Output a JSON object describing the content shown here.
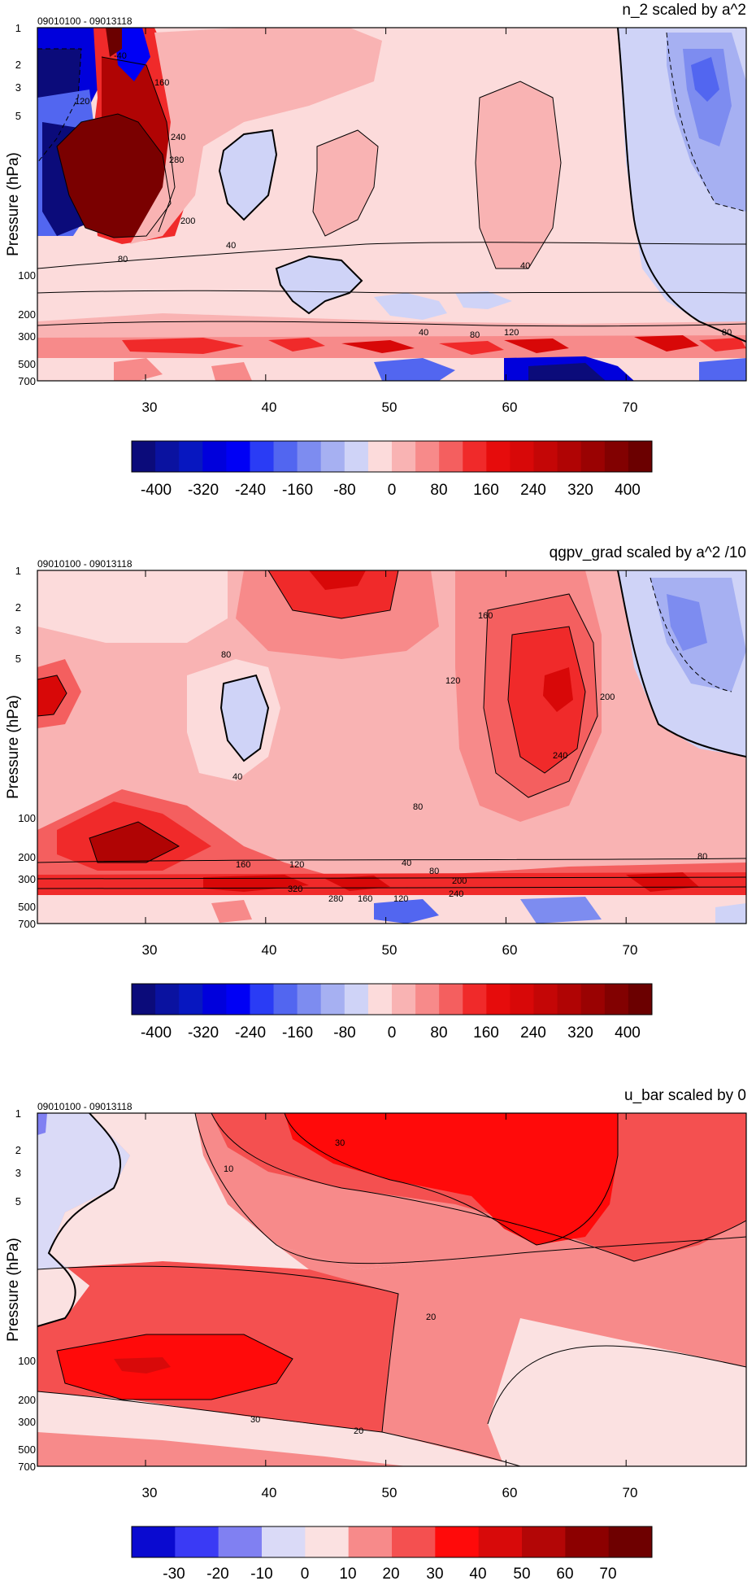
{
  "chart_data": [
    {
      "type": "heatmap",
      "title": "n_2 scaled by a^2",
      "subtitle": "09010100 - 09013118",
      "ylabel": "Pressure (hPa)",
      "xlabel": "",
      "x_ticks": [
        30,
        40,
        50,
        60,
        70
      ],
      "y_ticks": [
        "1",
        "2",
        "3",
        "5",
        "100",
        "200",
        "300",
        "500",
        "700"
      ],
      "xlim": [
        21,
        80
      ],
      "colorbar_labels": [
        "-400",
        "-320",
        "-240",
        "-160",
        "-80",
        "0",
        "80",
        "160",
        "240",
        "320",
        "400"
      ],
      "colorbar_colors": [
        "#0b0b7a",
        "#0a12a0",
        "#0717c0",
        "#0000dc",
        "#0000f5",
        "#2a3cf5",
        "#5266f0",
        "#7d8cf0",
        "#a6b0f2",
        "#cfd3f7",
        "#fcdbdb",
        "#f9b3b3",
        "#f78a8a",
        "#f45f5f",
        "#f02a2a",
        "#e60c0c",
        "#d80808",
        "#c40606",
        "#b00404",
        "#9a0202",
        "#820101",
        "#6b0000"
      ],
      "contour_labels": [
        "-40",
        "120",
        "160",
        "200",
        "240",
        "280",
        "40",
        "80",
        "40",
        "40",
        "80",
        "120",
        "80"
      ],
      "ylabel_text": "Pressure (hPa)"
    },
    {
      "type": "heatmap",
      "title": "qgpv_grad scaled by a^2 /10",
      "subtitle": "09010100 - 09013118",
      "ylabel": "Pressure (hPa)",
      "xlabel": "",
      "x_ticks": [
        30,
        40,
        50,
        60,
        70
      ],
      "y_ticks": [
        "1",
        "2",
        "3",
        "5",
        "100",
        "200",
        "300",
        "500",
        "700"
      ],
      "xlim": [
        21,
        80
      ],
      "colorbar_labels": [
        "-400",
        "-320",
        "-240",
        "-160",
        "-80",
        "0",
        "80",
        "160",
        "240",
        "320",
        "400"
      ],
      "colorbar_colors": [
        "#0b0b7a",
        "#0a12a0",
        "#0717c0",
        "#0000dc",
        "#0000f5",
        "#2a3cf5",
        "#5266f0",
        "#7d8cf0",
        "#a6b0f2",
        "#cfd3f7",
        "#fcdbdb",
        "#f9b3b3",
        "#f78a8a",
        "#f45f5f",
        "#f02a2a",
        "#e60c0c",
        "#d80808",
        "#c40606",
        "#b00404",
        "#9a0202",
        "#820101",
        "#6b0000"
      ],
      "contour_labels": [
        "160",
        "80",
        "120",
        "200",
        "240",
        "40",
        "80",
        "160",
        "120",
        "40",
        "80",
        "200",
        "320",
        "240",
        "280",
        "160",
        "120",
        "80"
      ],
      "ylabel_text": "Pressure (hPa)"
    },
    {
      "type": "heatmap",
      "title": "u_bar scaled by 0",
      "subtitle": "09010100 - 09013118",
      "ylabel": "Pressure (hPa)",
      "xlabel": "",
      "x_ticks": [
        30,
        40,
        50,
        60,
        70
      ],
      "y_ticks": [
        "1",
        "2",
        "3",
        "5",
        "100",
        "200",
        "300",
        "500",
        "700"
      ],
      "xlim": [
        21,
        80
      ],
      "colorbar_labels": [
        "-30",
        "-20",
        "-10",
        "0",
        "10",
        "20",
        "30",
        "40",
        "50",
        "60",
        "70"
      ],
      "colorbar_colors": [
        "#0a0ad0",
        "#3a3af5",
        "#8080f2",
        "#dadaf7",
        "#fbe1e1",
        "#f78a8a",
        "#f45050",
        "#ff0a0a",
        "#d80a0a",
        "#b30606",
        "#8c0000",
        "#6e0000"
      ],
      "contour_labels": [
        "30",
        "10",
        "20",
        "30",
        "20"
      ],
      "ylabel_text": "Pressure (hPa)"
    }
  ]
}
